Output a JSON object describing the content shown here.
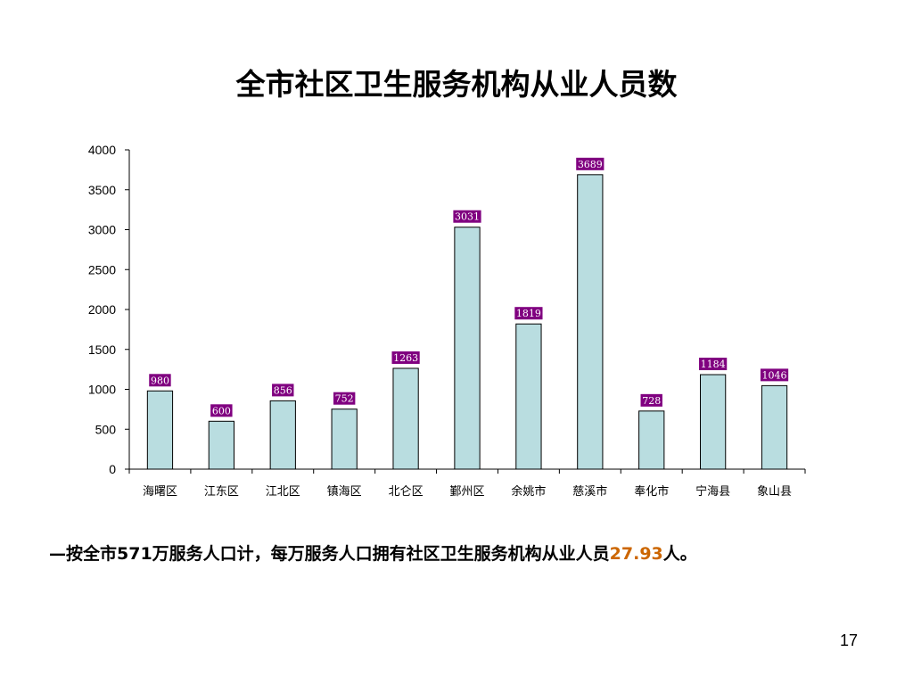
{
  "slide": {
    "caption_prefix": "—按全市571万服务人口计，每万服务人口拥有社区卫生服务机构从业人员",
    "caption_value": "27.93",
    "caption_suffix": "人。",
    "page_number": "17"
  },
  "colors": {
    "bar_fill": "#b9dde0",
    "bar_stroke": "#000000",
    "label_bg": "#800080",
    "label_text": "#ffffff",
    "highlight": "#cc6600"
  },
  "chart_data": {
    "type": "bar",
    "title": "全市社区卫生服务机构从业人员数",
    "xlabel": "",
    "ylabel": "",
    "categories": [
      "海曙区",
      "江东区",
      "江北区",
      "镇海区",
      "北仑区",
      "鄞州区",
      "余姚市",
      "慈溪市",
      "奉化市",
      "宁海县",
      "象山县"
    ],
    "values": [
      980,
      600,
      856,
      752,
      1263,
      3031,
      1819,
      3689,
      728,
      1184,
      1046
    ],
    "ylim": [
      0,
      4000
    ],
    "yticks": [
      0,
      500,
      1000,
      1500,
      2000,
      2500,
      3000,
      3500,
      4000
    ],
    "grid": false,
    "legend": "none"
  }
}
